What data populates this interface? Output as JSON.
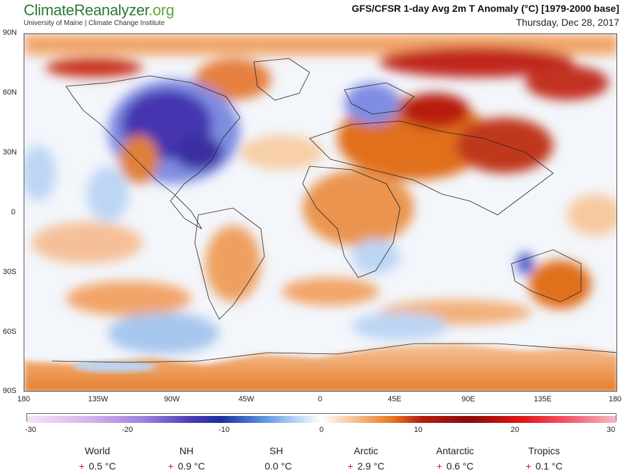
{
  "brand": {
    "logo_part1": "ClimateRe",
    "logo_part2": "analyzer",
    "logo_part3": ".org",
    "subtitle": "University of Maine | Climate Change Institute"
  },
  "header": {
    "title": "GFS/CFSR 1-day Avg 2m T Anomaly (°C) [1979-2000 base]",
    "date": "Thursday, Dec 28, 2017"
  },
  "axes": {
    "lat_labels": [
      "90N",
      "60N",
      "30N",
      "0",
      "30S",
      "60S",
      "90S"
    ],
    "lon_labels": [
      "180",
      "135W",
      "90W",
      "45W",
      "0",
      "45E",
      "90E",
      "135E",
      "180"
    ]
  },
  "colorbar": {
    "labels": [
      "-30",
      "-20",
      "-10",
      "0",
      "10",
      "20",
      "30"
    ],
    "min": -30,
    "max": 30
  },
  "stats": [
    {
      "name": "World",
      "sign": "+",
      "value": "0.5 °C"
    },
    {
      "name": "NH",
      "sign": "+",
      "value": "0.9 °C"
    },
    {
      "name": "SH",
      "sign": "",
      "value": "0.0 °C"
    },
    {
      "name": "Arctic",
      "sign": "+",
      "value": "2.9 °C"
    },
    {
      "name": "Antarctic",
      "sign": "+",
      "value": "0.6 °C"
    },
    {
      "name": "Tropics",
      "sign": "+",
      "value": "0.1 °C"
    }
  ],
  "colors": {
    "cold_strong": "#3a2fa0",
    "cold": "#6f8fe0",
    "cool": "#bcd6f4",
    "neutral": "#ffffff",
    "warm": "#f4b27a",
    "hot": "#e0701e",
    "very_hot": "#b81c10"
  }
}
